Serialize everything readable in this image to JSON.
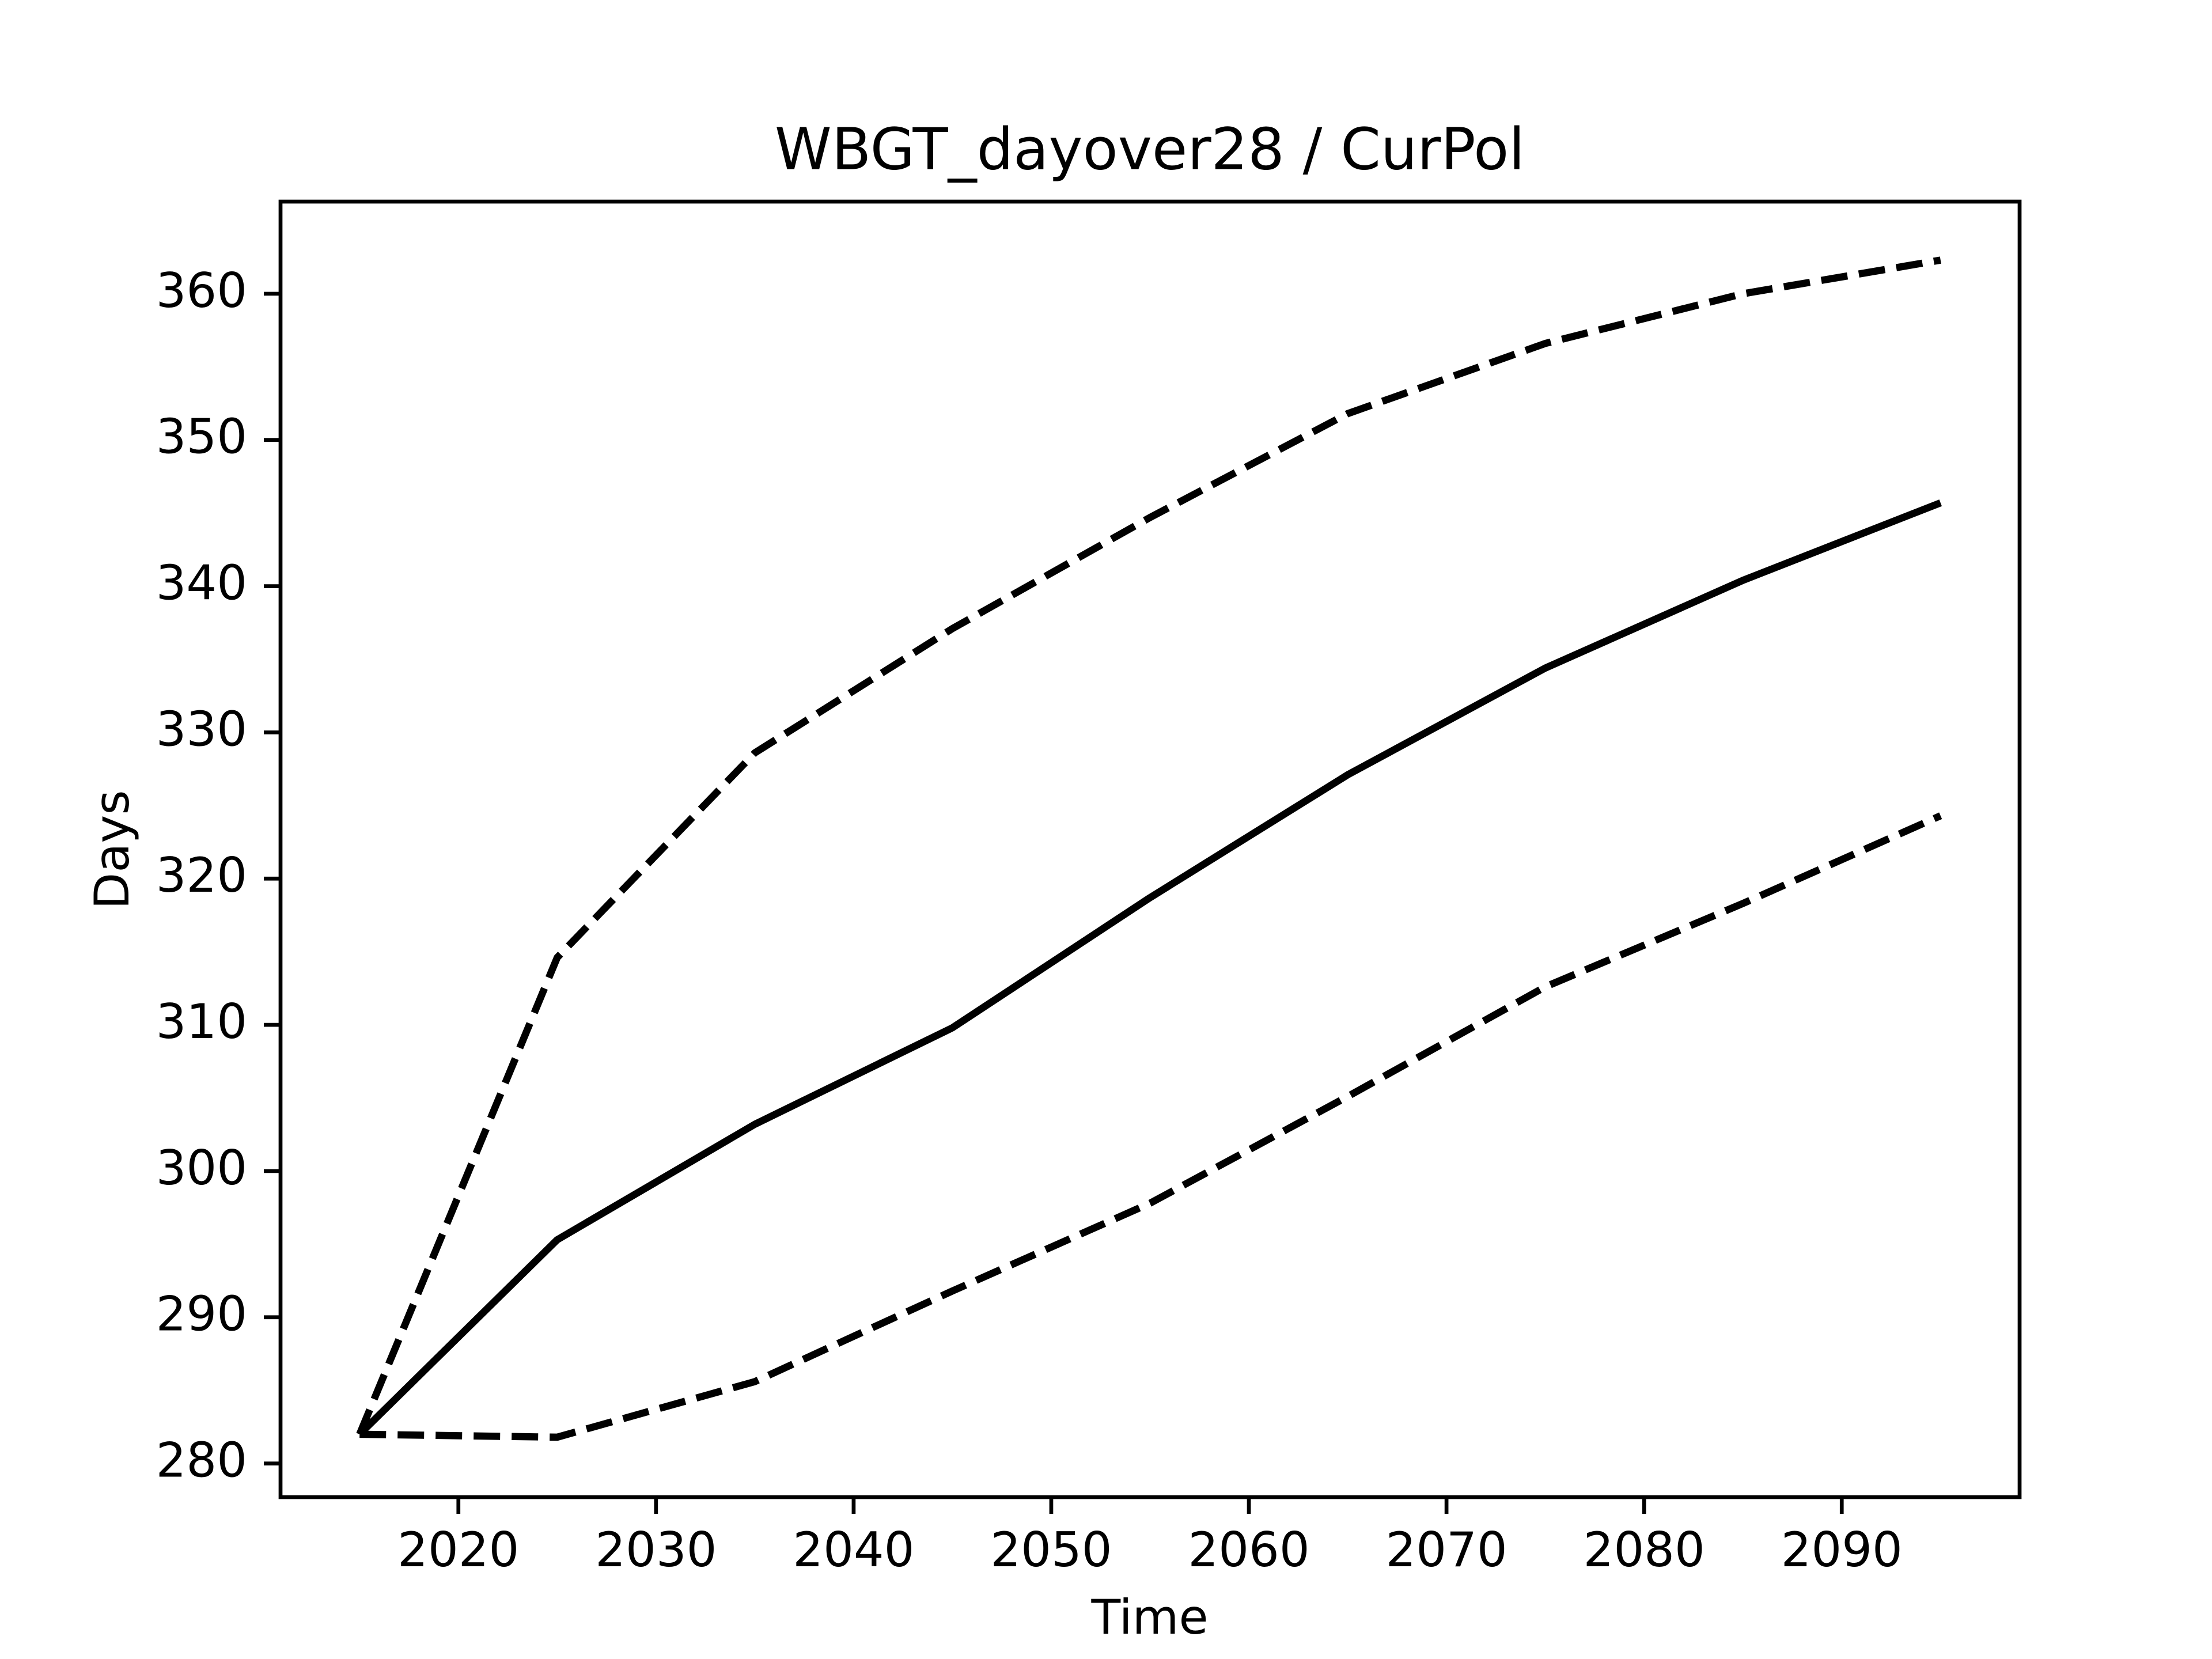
{
  "chart_data": {
    "type": "line",
    "title": "WBGT_dayover28 / CurPol",
    "x_label": "Time",
    "y_label": "Days",
    "x": [
      2015,
      2025,
      2035,
      2045,
      2055,
      2065,
      2075,
      2085,
      2095
    ],
    "series": [
      {
        "color": "#000000",
        "linestyle": "solid",
        "values": [
          282.0,
          295.3,
          303.2,
          309.8,
          318.7,
          327.1,
          334.4,
          340.4,
          345.7
        ]
      },
      {
        "color": "#000000",
        "linestyle": "dashed",
        "values": [
          282.0,
          314.6,
          328.6,
          337.1,
          344.7,
          351.8,
          356.6,
          360.0,
          362.3
        ]
      },
      {
        "color": "#000000",
        "linestyle": "dashed",
        "values": [
          282.0,
          281.8,
          285.6,
          291.8,
          297.8,
          305.1,
          312.6,
          318.3,
          324.3
        ]
      }
    ],
    "xlim": [
      2011,
      2099
    ],
    "ylim": [
      277.7,
      366.3
    ],
    "xticks": [
      2020,
      2030,
      2040,
      2050,
      2060,
      2070,
      2080,
      2090
    ],
    "yticks": [
      280,
      290,
      300,
      310,
      320,
      330,
      340,
      350,
      360
    ],
    "grid": false
  }
}
